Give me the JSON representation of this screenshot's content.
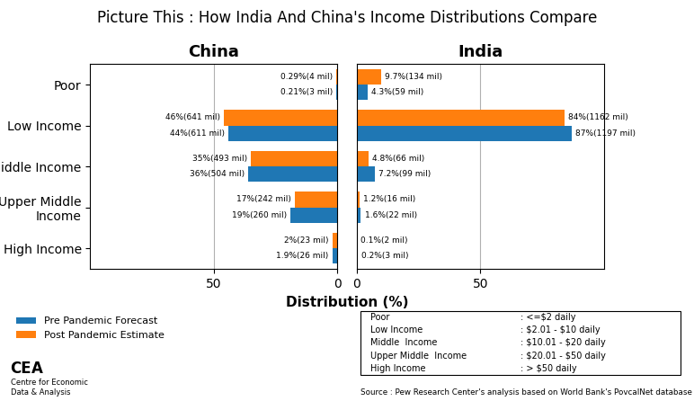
{
  "title": "Picture This : How India And China's Income Distributions Compare",
  "xlabel": "Distribution (%)",
  "legend": "lower left",
  "annotations": [
    "Source : Pew Research Center's analysis based on World Bank's PovcalNet database",
    "CE",
    "A",
    "Centre for Economic\nData & Analysis"
  ],
  "notes": {
    "labels": [
      "Poor",
      "Low Income",
      "Middle  Income",
      "Upper Middle  Income",
      "High Income"
    ],
    "texts": [
      ": <=$2 daily",
      ": $2.01 - $10 daily",
      ": $10.01 - $20 daily",
      ": $20.01 - $50 daily",
      ": > $50 daily"
    ]
  },
  "chart_data": [
    {
      "type": "bar",
      "orientation": "horizontal",
      "title": "China",
      "categories": [
        "Poor",
        "Low Income",
        "Middle Income",
        "Upper Middle\nIncome",
        "High Income"
      ],
      "data_labels": true,
      "grid": true,
      "xlim": [
        100,
        0
      ],
      "xticks": [
        50,
        0
      ],
      "series": [
        {
          "name": "Pre Pandemic Forecast",
          "values": [
            0.21,
            44,
            36,
            19,
            1.9
          ],
          "value_labels": [
            "0.21%(3 mil)",
            "44%(611 mil)",
            "36%(504 mil)",
            "19%(260 mil)",
            "1.9%(26 mil)"
          ]
        },
        {
          "name": "Post Pandemic Estimate",
          "values": [
            0.29,
            46,
            35,
            17,
            2
          ],
          "value_labels": [
            "0.29%(4 mil)",
            "46%(641 mil)",
            "35%(493 mil)",
            "17%(242 mil)",
            "2%(23 mil)"
          ]
        }
      ]
    },
    {
      "type": "bar",
      "orientation": "horizontal",
      "title": "India",
      "categories": [
        "Poor",
        "Low Income",
        "Middle Income",
        "Upper Middle\nIncome",
        "High Income"
      ],
      "data_labels": true,
      "grid": true,
      "xlim": [
        0,
        100
      ],
      "xticks": [
        0,
        50
      ],
      "series": [
        {
          "name": "Pre Pandemic Forecast",
          "values": [
            4.3,
            87,
            7.2,
            1.6,
            0.2
          ],
          "value_labels": [
            "4.3%(59 mil)",
            "87%(1197 mil)",
            "7.2%(99 mil)",
            "1.6%(22 mil)",
            "0.2%(3 mil)"
          ]
        },
        {
          "name": "Post Pandemic Estimate",
          "values": [
            9.7,
            84,
            4.8,
            1.2,
            0.1
          ],
          "value_labels": [
            "9.7%(134 mil)",
            "84%(1162 mil)",
            "4.8%(66 mil)",
            "1.2%(16 mil)",
            "0.1%(2 mil)"
          ]
        }
      ]
    }
  ]
}
